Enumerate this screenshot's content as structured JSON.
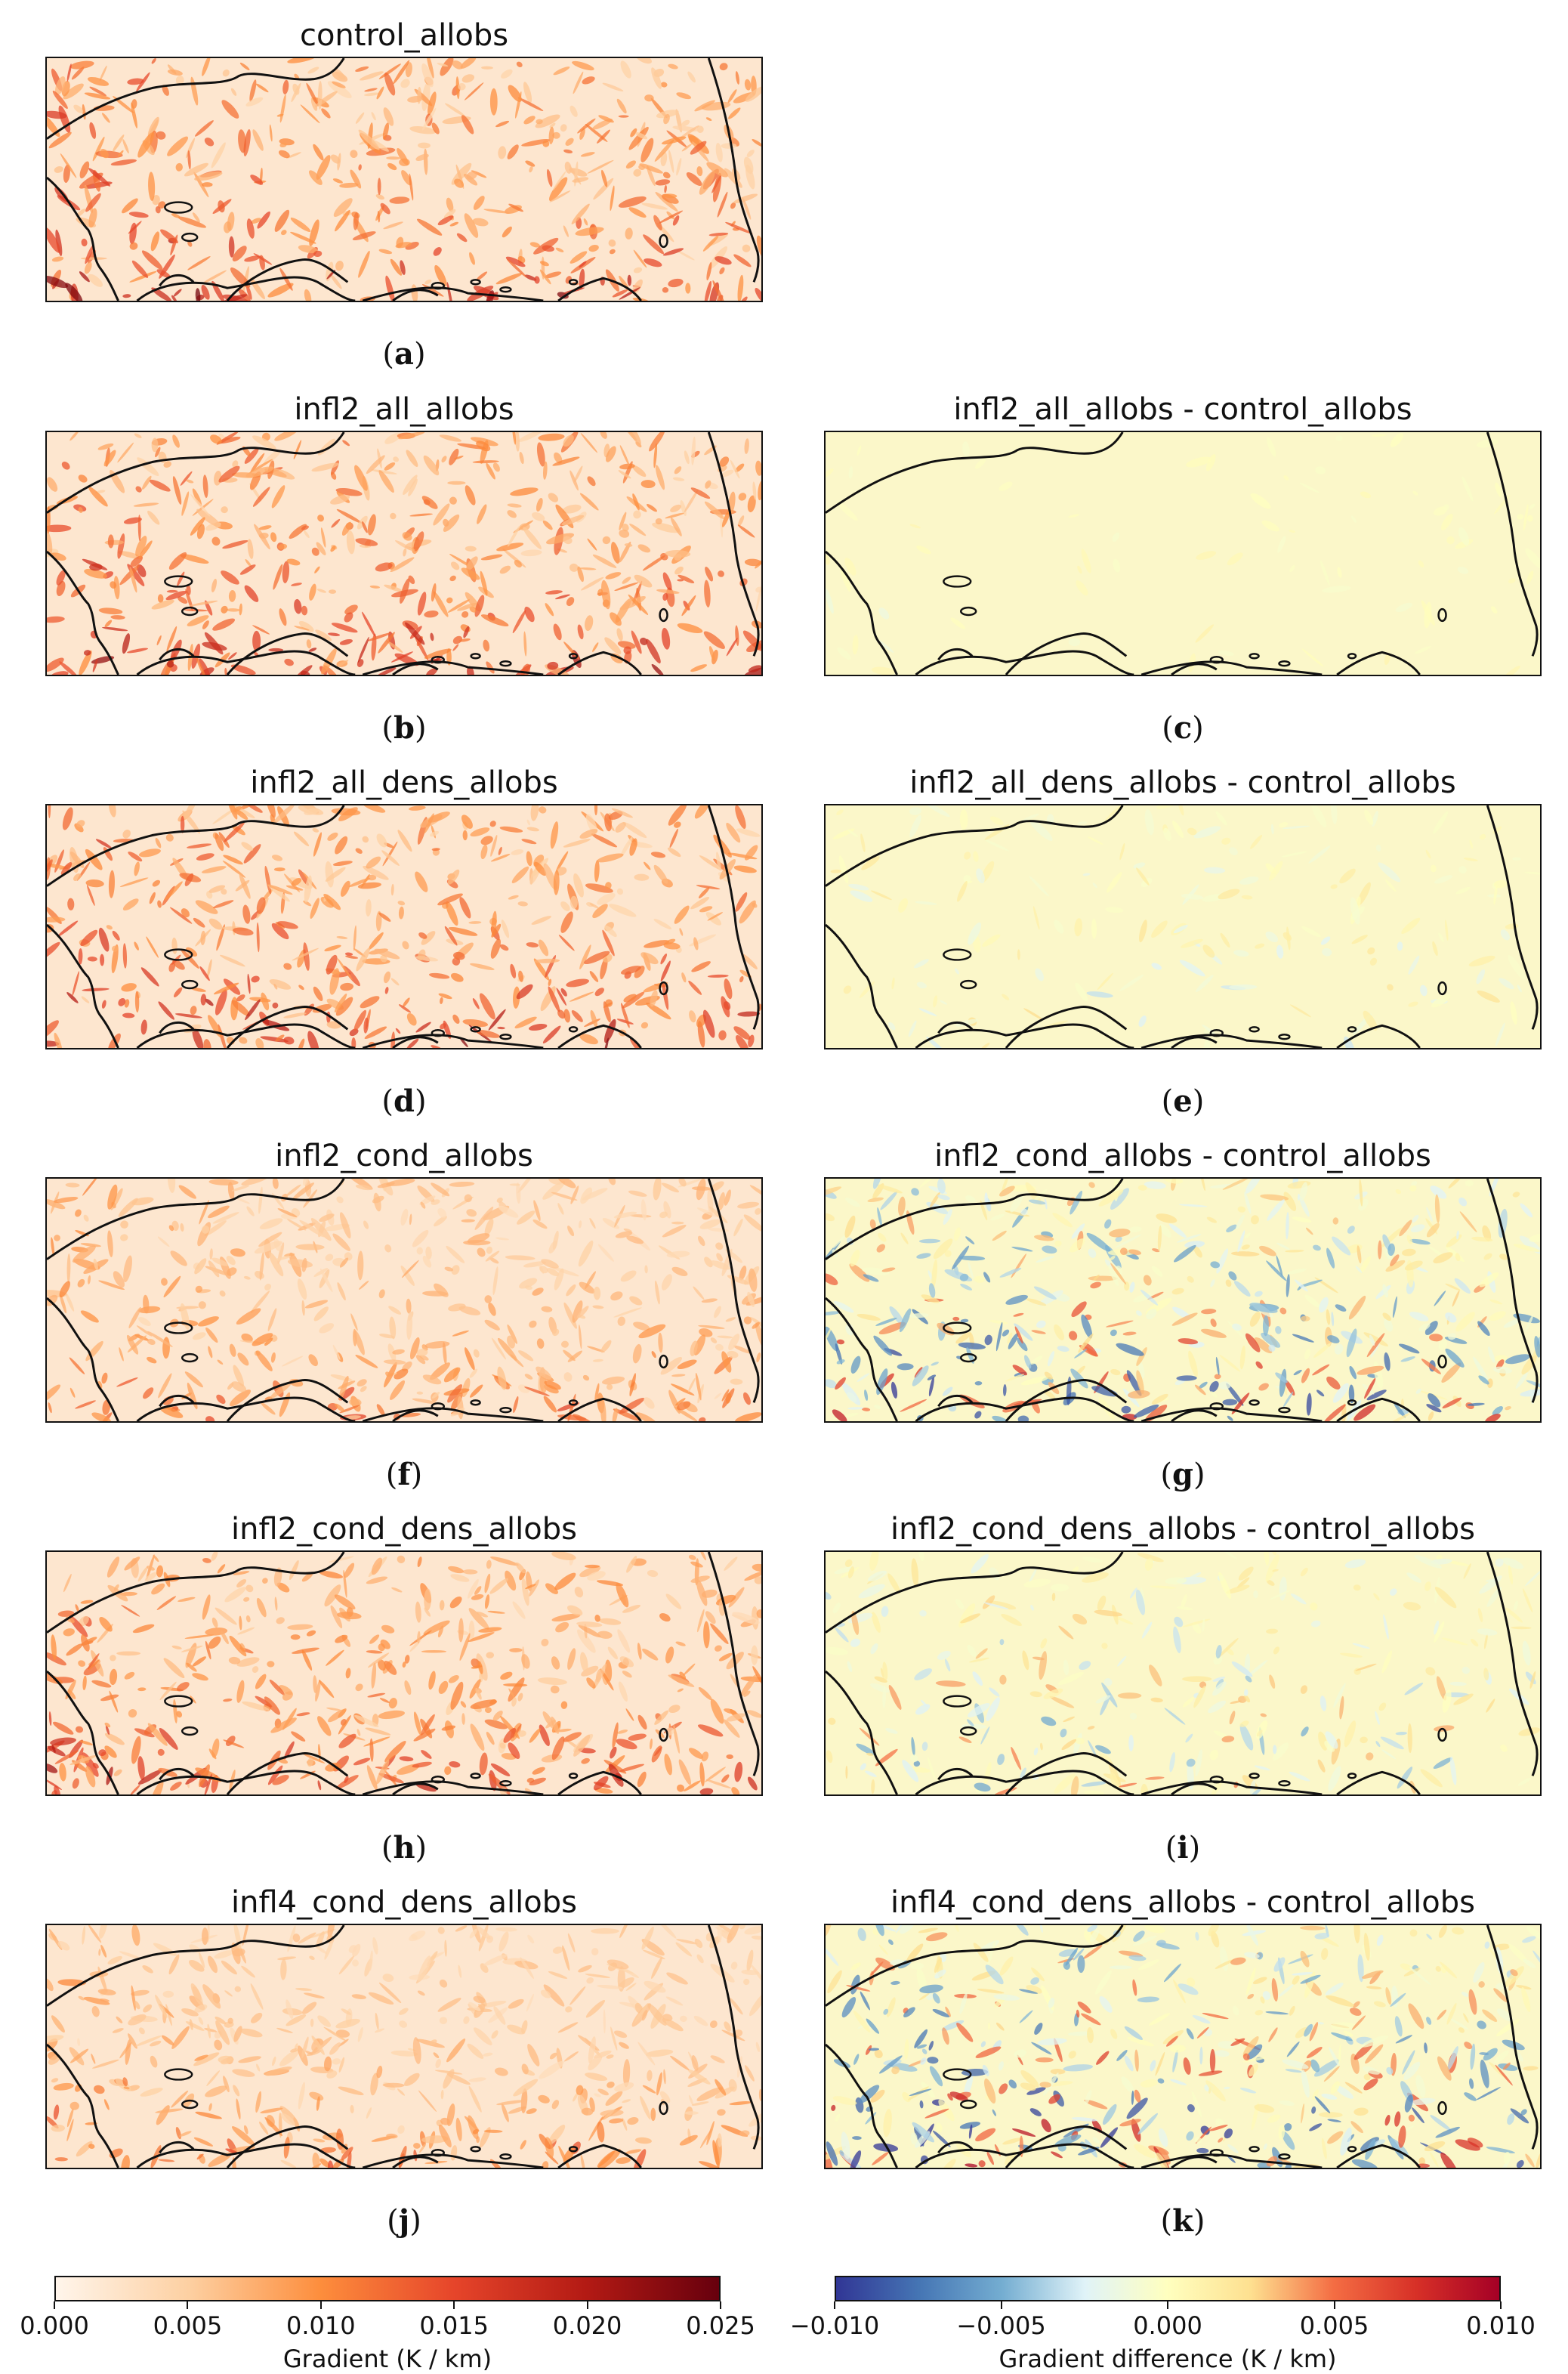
{
  "panels": [
    {
      "id": "a",
      "title": "control_allobs",
      "letter": "a",
      "kind": "gradient",
      "intensity": 1.0,
      "noise": 1.0
    },
    {
      "id": "b",
      "title": "infl2_all_allobs",
      "letter": "b",
      "kind": "gradient",
      "intensity": 1.0,
      "noise": 1.0
    },
    {
      "id": "c",
      "title": "infl2_all_allobs - control_allobs",
      "letter": "c",
      "kind": "difference",
      "intensity": 0.15,
      "noise": 1.0
    },
    {
      "id": "d",
      "title": "infl2_all_dens_allobs",
      "letter": "d",
      "kind": "gradient",
      "intensity": 1.0,
      "noise": 1.0
    },
    {
      "id": "e",
      "title": "infl2_all_dens_allobs - control_allobs",
      "letter": "e",
      "kind": "difference",
      "intensity": 0.35,
      "noise": 1.0
    },
    {
      "id": "f",
      "title": "infl2_cond_allobs",
      "letter": "f",
      "kind": "gradient",
      "intensity": 0.85,
      "noise": 0.55
    },
    {
      "id": "g",
      "title": "infl2_cond_allobs - control_allobs",
      "letter": "g",
      "kind": "difference",
      "intensity": 1.0,
      "noise": 1.0
    },
    {
      "id": "h",
      "title": "infl2_cond_dens_allobs",
      "letter": "h",
      "kind": "gradient",
      "intensity": 0.95,
      "noise": 0.85
    },
    {
      "id": "i",
      "title": "infl2_cond_dens_allobs - control_allobs",
      "letter": "i",
      "kind": "difference",
      "intensity": 0.6,
      "noise": 1.0
    },
    {
      "id": "j",
      "title": "infl4_cond_dens_allobs",
      "letter": "j",
      "kind": "gradient",
      "intensity": 0.8,
      "noise": 0.5
    },
    {
      "id": "k",
      "title": "infl4_cond_dens_allobs - control_allobs",
      "letter": "k",
      "kind": "difference",
      "intensity": 1.1,
      "noise": 1.0
    }
  ],
  "colorbars": {
    "gradient": {
      "label": "Gradient (K / km)",
      "ticks": [
        "0.000",
        "0.005",
        "0.010",
        "0.015",
        "0.020",
        "0.025"
      ],
      "range": [
        0.0,
        0.025
      ],
      "colors": [
        "#fff5eb",
        "#fdd0a2",
        "#fd8d3c",
        "#e6452a",
        "#b31a14",
        "#67000d"
      ]
    },
    "difference": {
      "label": "Gradient difference (K / km)",
      "ticks": [
        "−0.010",
        "−0.005",
        "0.000",
        "0.005",
        "0.010"
      ],
      "range": [
        -0.01,
        0.01
      ],
      "colors": [
        "#313695",
        "#4575b4",
        "#74add1",
        "#e0f3f8",
        "#ffffbf",
        "#fee090",
        "#f46d43",
        "#d73027",
        "#a50026"
      ]
    }
  }
}
